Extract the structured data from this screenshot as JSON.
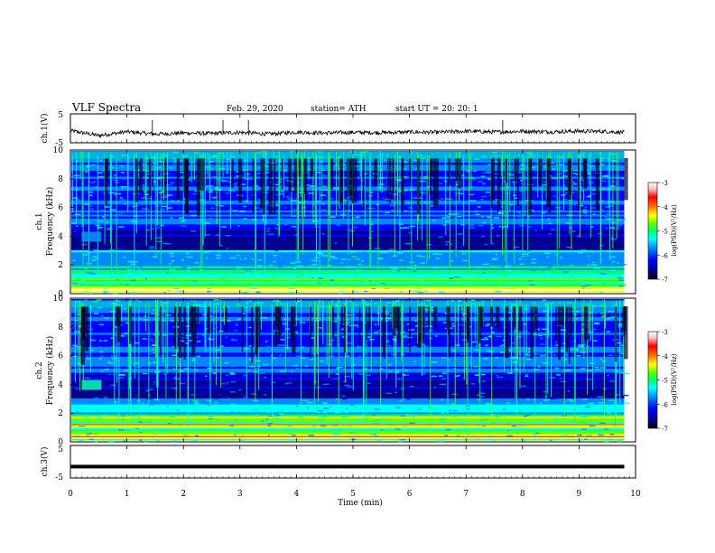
{
  "header": {
    "title": "VLF  Spectra",
    "date": "Feb. 29, 2020",
    "station": "station= ATH",
    "start": "start  UT  =   20: 20: 1"
  },
  "colors": {
    "background": "#ffffff",
    "axis": "#000000",
    "colormap": [
      "#000000",
      "#00008b",
      "#0000ff",
      "#0088ff",
      "#00ffff",
      "#00ff66",
      "#66ff00",
      "#ffff00",
      "#ff6600",
      "#ff0000",
      "#ffbbbb",
      "#ffffff"
    ]
  },
  "chart_data": [
    {
      "type": "line",
      "panel": "waveform-ch1",
      "ylabel": "ch.1(V)",
      "ylim": [
        -5,
        5
      ],
      "yticks": [
        "5",
        "-5"
      ],
      "x": [
        0,
        0.5,
        1,
        1.5,
        2,
        2.5,
        3,
        3.5,
        4,
        4.5,
        5,
        5.5,
        6,
        6.5,
        7,
        7.5,
        8,
        8.5,
        9,
        9.5,
        9.8
      ],
      "y": [
        -0.8,
        -2.5,
        -1.2,
        -2.0,
        -1.6,
        -1.8,
        -1.4,
        -2.0,
        -1.3,
        -1.6,
        -1.4,
        -1.5,
        -1.3,
        -1.4,
        -1.0,
        -1.3,
        -1.0,
        -1.2,
        -1.0,
        -1.1,
        -1.4
      ]
    },
    {
      "type": "heatmap",
      "panel": "spectrogram-ch1",
      "ylabel": "ch.1\nFrequency  (kHz)",
      "ylim": [
        0,
        10
      ],
      "yticks": [
        "0",
        "2",
        "4",
        "6",
        "8",
        "10"
      ],
      "colorbar": {
        "label": "log(PSD)(V²/Hz)",
        "range": [
          -7,
          -3
        ],
        "ticks": [
          "-3",
          "-4",
          "-5",
          "-6",
          "-7"
        ]
      }
    },
    {
      "type": "heatmap",
      "panel": "spectrogram-ch2",
      "ylabel": "ch.2\nFrequency  (kHz)",
      "ylim": [
        0,
        10
      ],
      "yticks": [
        "0",
        "2",
        "4",
        "6",
        "8",
        "10"
      ],
      "colorbar": {
        "label": "log(PSD)(V²/Hz)",
        "range": [
          -7,
          -3
        ],
        "ticks": [
          "-3",
          "-4",
          "-5",
          "-6",
          "-7"
        ]
      }
    },
    {
      "type": "line",
      "panel": "waveform-ch3",
      "ylabel": "ch.3(V)",
      "ylim": [
        -5,
        5
      ],
      "yticks": [
        "5",
        "-5"
      ],
      "x": [
        0,
        9.8
      ],
      "y": [
        -1.5,
        -1.5
      ]
    }
  ],
  "xaxis": {
    "label": "Time  (min)",
    "xlim": [
      0,
      10
    ],
    "ticks": [
      "0",
      "1",
      "2",
      "3",
      "4",
      "5",
      "6",
      "7",
      "8",
      "9",
      "10"
    ],
    "data_end": 9.8
  }
}
